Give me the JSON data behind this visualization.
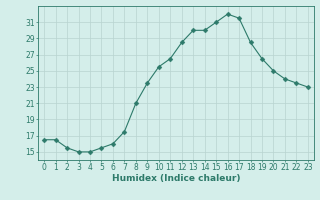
{
  "x": [
    0,
    1,
    2,
    3,
    4,
    5,
    6,
    7,
    8,
    9,
    10,
    11,
    12,
    13,
    14,
    15,
    16,
    17,
    18,
    19,
    20,
    21,
    22,
    23
  ],
  "y": [
    16.5,
    16.5,
    15.5,
    15.0,
    15.0,
    15.5,
    16.0,
    17.5,
    21.0,
    23.5,
    25.5,
    26.5,
    28.5,
    30.0,
    30.0,
    31.0,
    32.0,
    31.5,
    28.5,
    26.5,
    25.0,
    24.0,
    23.5,
    23.0
  ],
  "xlabel": "Humidex (Indice chaleur)",
  "xlim": [
    -0.5,
    23.5
  ],
  "ylim": [
    14.0,
    33.0
  ],
  "yticks": [
    15,
    17,
    19,
    21,
    23,
    25,
    27,
    29,
    31
  ],
  "xticks": [
    0,
    1,
    2,
    3,
    4,
    5,
    6,
    7,
    8,
    9,
    10,
    11,
    12,
    13,
    14,
    15,
    16,
    17,
    18,
    19,
    20,
    21,
    22,
    23
  ],
  "line_color": "#2d7a6a",
  "marker_size": 2.5,
  "background_color": "#d4eeea",
  "grid_color": "#b8d4d0",
  "label_fontsize": 6.5,
  "tick_fontsize": 5.5
}
